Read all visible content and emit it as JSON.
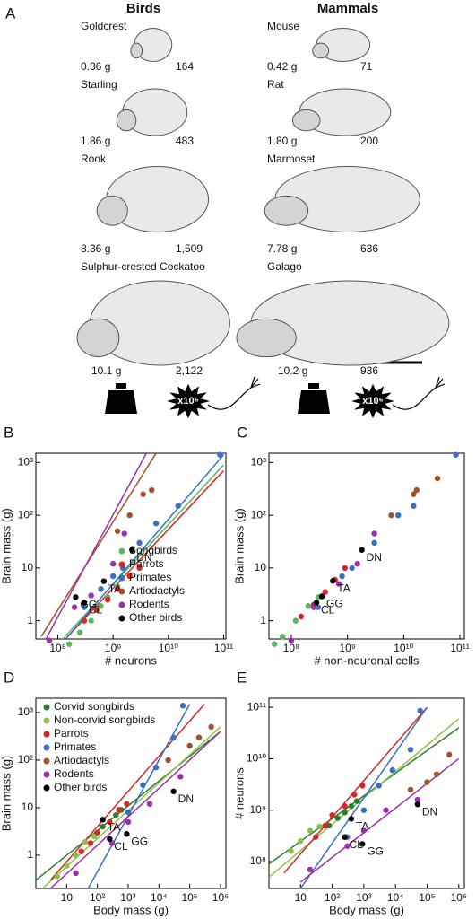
{
  "panel_a": {
    "label": "A",
    "multiplier": "x10⁶",
    "groups": [
      {
        "title": "Birds",
        "species": [
          {
            "name": "Goldcrest",
            "mass": "0.36 g",
            "neurons": "164"
          },
          {
            "name": "Starling",
            "mass": "1.86 g",
            "neurons": "483"
          },
          {
            "name": "Rook",
            "mass": "8.36 g",
            "neurons": "1,509"
          },
          {
            "name": "Sulphur-crested Cockatoo",
            "mass": "10.1 g",
            "neurons": "2,122"
          }
        ]
      },
      {
        "title": "Mammals",
        "species": [
          {
            "name": "Mouse",
            "mass": "0.42 g",
            "neurons": "71"
          },
          {
            "name": "Rat",
            "mass": "1.80 g",
            "neurons": "200"
          },
          {
            "name": "Marmoset",
            "mass": "7.78 g",
            "neurons": "636"
          },
          {
            "name": "Galago",
            "mass": "10.2 g",
            "neurons": "936"
          }
        ]
      }
    ]
  },
  "chart_data": [
    {
      "type": "scatter",
      "panel": "B",
      "xlabel": "# neurons",
      "ylabel": "Brain mass (g)",
      "log_x": true,
      "log_y": true,
      "legend": "lower right",
      "xlim": [
        40000000,
        110000000000
      ],
      "ylim": [
        0.45,
        1500
      ],
      "xticks": [
        {
          "value": 100000000,
          "label": "10⁸"
        },
        {
          "value": 1000000000,
          "label": "10⁹"
        },
        {
          "value": 10000000000,
          "label": "10¹⁰"
        },
        {
          "value": 100000000000,
          "label": "10¹¹"
        }
      ],
      "yticks": [
        1,
        10,
        {
          "value": 100,
          "label": "10²"
        },
        {
          "value": 1000,
          "label": "10³"
        }
      ],
      "series": [
        {
          "name": "Songbirds",
          "color": "#5cb85c",
          "x": [
            160000000,
            250000000,
            400000000,
            600000000,
            800000000,
            1200000000
          ],
          "y": [
            0.36,
            0.6,
            1.0,
            1.9,
            2.8,
            4.5
          ]
        },
        {
          "name": "Parrots",
          "color": "#d62728",
          "x": [
            300000000,
            500000000,
            800000000,
            1200000000,
            2000000000,
            3000000000
          ],
          "y": [
            1.0,
            1.6,
            2.5,
            4,
            7,
            10
          ]
        },
        {
          "name": "Primates",
          "color": "#3a6fc4",
          "x": [
            300000000,
            600000000,
            1000000000,
            1500000000,
            3000000000,
            6000000000,
            15000000000,
            86000000000
          ],
          "y": [
            1.8,
            4,
            7,
            10,
            30,
            70,
            150,
            1400
          ]
        },
        {
          "name": "Artiodactyls",
          "color": "#a0522d",
          "x": [
            1200000000,
            2000000000,
            3500000000,
            5000000000
          ],
          "y": [
            50,
            100,
            250,
            300
          ]
        },
        {
          "name": "Rodents",
          "color": "#9b30a8",
          "x": [
            70000000,
            200000000,
            400000000,
            1000000000,
            1600000000
          ],
          "y": [
            0.42,
            1.8,
            3,
            12,
            45
          ]
        },
        {
          "name": "Other birds",
          "color": "#000000",
          "x": [
            2200000000,
            210000000,
            300000000,
            680000000
          ],
          "y": [
            22,
            2.8,
            2.2,
            5.6
          ],
          "labels": [
            "DN",
            "GG",
            "CL",
            "TA"
          ]
        }
      ],
      "fits": [
        {
          "color": "#5cb85c",
          "x": [
            60000000,
            100000000000
          ],
          "y": [
            0.2,
            900
          ]
        },
        {
          "color": "#d62728",
          "x": [
            150000000,
            100000000000
          ],
          "y": [
            0.5,
            700
          ]
        },
        {
          "color": "#3a6fc4",
          "x": [
            100000000,
            100000000000
          ],
          "y": [
            0.3,
            1400
          ]
        },
        {
          "color": "#a0522d",
          "x": [
            50000000,
            6000000000
          ],
          "y": [
            0.5,
            1500
          ]
        },
        {
          "color": "#9b30a8",
          "x": [
            40000000,
            4000000000
          ],
          "y": [
            0.2,
            1500
          ]
        }
      ]
    },
    {
      "type": "scatter",
      "panel": "C",
      "xlabel": "# non-neuronal cells",
      "ylabel": "Brain mass (g)",
      "log_x": true,
      "log_y": true,
      "xlim": [
        40000000,
        120000000000
      ],
      "ylim": [
        0.45,
        1500
      ],
      "xticks": [
        {
          "value": 100000000,
          "label": "10⁸"
        },
        {
          "value": 1000000000,
          "label": "10⁹"
        },
        {
          "value": 10000000000,
          "label": "10¹⁰"
        },
        {
          "value": 100000000000,
          "label": "10¹¹"
        }
      ],
      "yticks": [
        1,
        10,
        {
          "value": 100,
          "label": "10²"
        },
        {
          "value": 1000,
          "label": "10³"
        }
      ],
      "series": [
        {
          "color": "#5cb85c",
          "x": [
            50000000,
            70000000,
            120000000,
            200000000,
            300000000
          ],
          "y": [
            0.36,
            0.5,
            1.0,
            1.9,
            2.8
          ]
        },
        {
          "color": "#d62728",
          "x": [
            150000000,
            250000000,
            400000000,
            600000000,
            900000000
          ],
          "y": [
            1.2,
            2.0,
            3.5,
            6,
            10
          ]
        },
        {
          "color": "#3a6fc4",
          "x": [
            300000000,
            800000000,
            1200000000,
            3000000000,
            8000000000,
            15000000000,
            85000000000
          ],
          "y": [
            1.8,
            7,
            10,
            30,
            100,
            150,
            1400
          ]
        },
        {
          "color": "#a0522d",
          "x": [
            6000000000,
            15000000000,
            17000000000,
            40000000000
          ],
          "y": [
            100,
            250,
            300,
            500
          ]
        },
        {
          "color": "#9b30a8",
          "x": [
            100000000,
            250000000,
            700000000,
            1500000000,
            3000000000
          ],
          "y": [
            0.42,
            1.8,
            5,
            12,
            45
          ]
        },
        {
          "color": "#000000",
          "x": [
            1800000000,
            550000000,
            350000000,
            280000000
          ],
          "y": [
            22,
            5.7,
            2.9,
            2.2
          ],
          "labels": [
            "DN",
            "TA",
            "GG",
            "CL"
          ]
        }
      ],
      "fits": []
    },
    {
      "type": "scatter",
      "panel": "D",
      "xlabel": "Body mass (g)",
      "ylabel": "Brain mass (g)",
      "log_x": true,
      "log_y": true,
      "legend": "upper left",
      "xlim": [
        1,
        1500000
      ],
      "ylim": [
        0.2,
        2000
      ],
      "xticks": [
        10,
        {
          "value": 100,
          "label": "10²"
        },
        {
          "value": 1000,
          "label": "10³"
        },
        {
          "value": 10000,
          "label": "10⁴"
        },
        {
          "value": 100000,
          "label": "10⁵"
        },
        {
          "value": 1000000,
          "label": "10⁶"
        }
      ],
      "yticks": [
        1,
        10,
        {
          "value": 100,
          "label": "10²"
        },
        {
          "value": 1000,
          "label": "10³"
        }
      ],
      "series": [
        {
          "name": "Corvid songbirds",
          "color": "#2e7d32",
          "x": [
            80,
            150,
            250,
            400,
            600
          ],
          "y": [
            2.5,
            4,
            5,
            7,
            9
          ]
        },
        {
          "name": "Non-corvid songbirds",
          "color": "#8bc34a",
          "x": [
            5,
            10,
            20,
            40,
            80
          ],
          "y": [
            0.36,
            0.6,
            1.0,
            1.9,
            2.5
          ]
        },
        {
          "name": "Parrots",
          "color": "#d62728",
          "x": [
            30,
            60,
            100,
            250,
            500,
            900
          ],
          "y": [
            1.2,
            1.8,
            3,
            5,
            9,
            12
          ]
        },
        {
          "name": "Primates",
          "color": "#3a6fc4",
          "x": [
            300,
            1000,
            3000,
            8000,
            30000,
            60000
          ],
          "y": [
            1.8,
            8,
            30,
            70,
            300,
            1400
          ]
        },
        {
          "name": "Artiodactyls",
          "color": "#a0522d",
          "x": [
            20000,
            100000,
            200000,
            500000
          ],
          "y": [
            100,
            200,
            300,
            500
          ]
        },
        {
          "name": "Rodents",
          "color": "#9b30a8",
          "x": [
            20,
            300,
            1000,
            5000,
            50000
          ],
          "y": [
            0.42,
            1.8,
            5,
            12,
            45
          ]
        },
        {
          "name": "Other birds",
          "color": "#000000",
          "x": [
            30000,
            150,
            900,
            250
          ],
          "y": [
            22,
            5.6,
            2.8,
            2.2
          ],
          "labels": [
            "DN",
            "TA",
            "GG",
            "CL"
          ]
        }
      ],
      "fits": [
        {
          "color": "#2e7d32",
          "x": [
            1,
            1000000
          ],
          "y": [
            0.3,
            400
          ]
        },
        {
          "color": "#8bc34a",
          "x": [
            1,
            1000000
          ],
          "y": [
            0.15,
            500
          ]
        },
        {
          "color": "#d62728",
          "x": [
            3,
            300000
          ],
          "y": [
            0.3,
            1500
          ]
        },
        {
          "color": "#3a6fc4",
          "x": [
            50,
            100000
          ],
          "y": [
            0.2,
            1500
          ]
        },
        {
          "color": "#9b30a8",
          "x": [
            3,
            1000000
          ],
          "y": [
            0.2,
            400
          ]
        }
      ]
    },
    {
      "type": "scatter",
      "panel": "E",
      "xlabel": "Body mass (g)",
      "ylabel": "# neurons",
      "log_x": true,
      "log_y": true,
      "xlim": [
        1,
        1500000
      ],
      "ylim": [
        30000000,
        150000000000
      ],
      "xticks": [
        10,
        {
          "value": 100,
          "label": "10²"
        },
        {
          "value": 1000,
          "label": "10³"
        },
        {
          "value": 10000,
          "label": "10⁴"
        },
        {
          "value": 100000,
          "label": "10⁵"
        },
        {
          "value": 1000000,
          "label": "10⁶"
        }
      ],
      "yticks": [
        {
          "value": 100000000,
          "label": "10⁸"
        },
        {
          "value": 1000000000,
          "label": "10⁹"
        },
        {
          "value": 10000000000,
          "label": "10¹⁰"
        },
        {
          "value": 100000000000,
          "label": "10¹¹"
        }
      ],
      "series": [
        {
          "color": "#2e7d32",
          "x": [
            80,
            150,
            250,
            400,
            600
          ],
          "y": [
            500000000,
            700000000,
            900000000,
            1200000000,
            1500000000
          ]
        },
        {
          "color": "#8bc34a",
          "x": [
            5,
            10,
            20,
            40
          ],
          "y": [
            160000000,
            250000000,
            400000000,
            480000000
          ]
        },
        {
          "color": "#d62728",
          "x": [
            30,
            60,
            100,
            250,
            500,
            900
          ],
          "y": [
            300000000,
            500000000,
            800000000,
            1200000000,
            2000000000,
            3000000000
          ]
        },
        {
          "color": "#3a6fc4",
          "x": [
            300,
            1000,
            3000,
            8000,
            30000,
            60000
          ],
          "y": [
            300000000,
            1000000000,
            3000000000,
            6000000000,
            15000000000,
            86000000000
          ]
        },
        {
          "color": "#a0522d",
          "x": [
            30000,
            100000,
            200000,
            500000
          ],
          "y": [
            2500000000,
            3500000000,
            5000000000,
            12000000000
          ]
        },
        {
          "color": "#9b30a8",
          "x": [
            20,
            300,
            1000,
            5000,
            50000
          ],
          "y": [
            70000000,
            200000000,
            400000000,
            1000000000,
            1600000000
          ]
        },
        {
          "color": "#000000",
          "x": [
            50000,
            400,
            250,
            900
          ],
          "y": [
            1300000000,
            680000000,
            300000000,
            220000000
          ],
          "labels": [
            "DN",
            "TA",
            "CL",
            "GG"
          ]
        }
      ],
      "fits": [
        {
          "color": "#2e7d32",
          "x": [
            1,
            1000000
          ],
          "y": [
            90000000,
            40000000000
          ]
        },
        {
          "color": "#8bc34a",
          "x": [
            1,
            1000000
          ],
          "y": [
            50000000,
            60000000000
          ]
        },
        {
          "color": "#d62728",
          "x": [
            3,
            100000
          ],
          "y": [
            60000000,
            100000000000
          ]
        },
        {
          "color": "#3a6fc4",
          "x": [
            10,
            100000
          ],
          "y": [
            30000000,
            100000000000
          ]
        },
        {
          "color": "#9b30a8",
          "x": [
            10,
            1000000
          ],
          "y": [
            40000000,
            10000000000
          ]
        }
      ]
    }
  ]
}
